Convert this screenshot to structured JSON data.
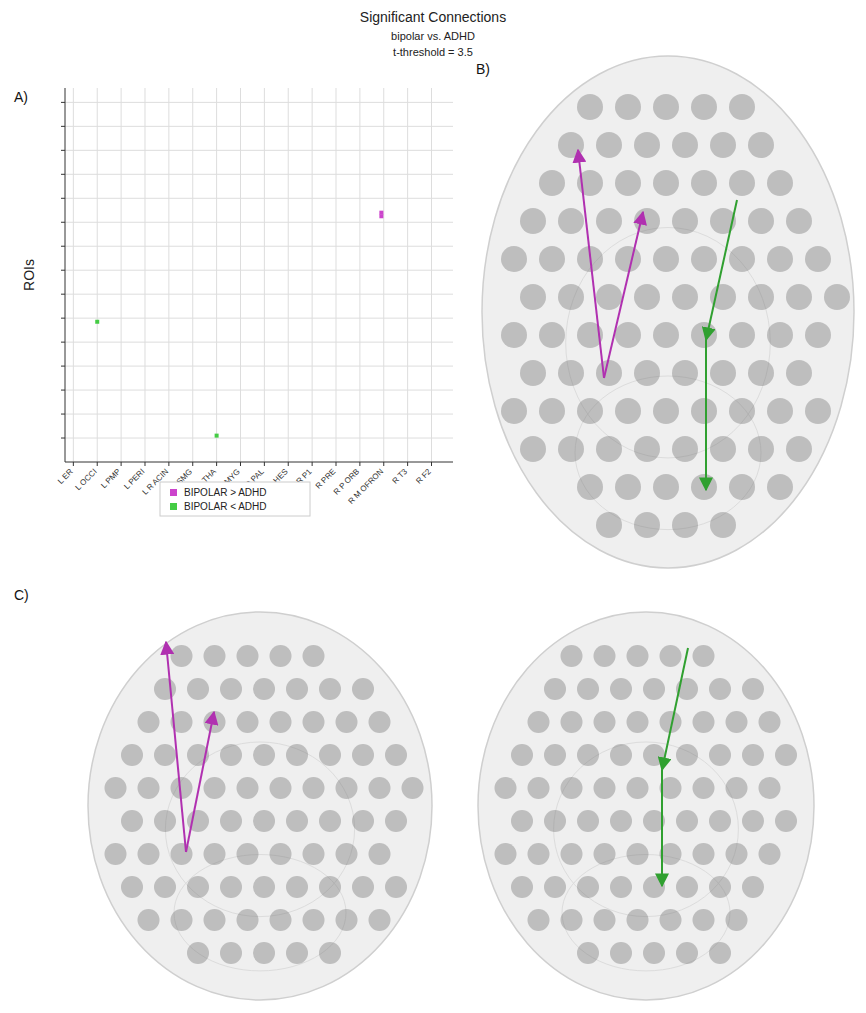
{
  "panel_labels": [
    "A)",
    "B)",
    "C)"
  ],
  "chart_data": {
    "type": "scatter",
    "title": "Significant Connections",
    "subtitle": "bipolar vs. ADHD",
    "annotations": [
      "t-threshold = 3.5"
    ],
    "ylabel": "ROIs",
    "xlim": [
      -0.35,
      15.9
    ],
    "xticks": [
      {
        "value": 0,
        "label": "L ER"
      },
      {
        "value": 1,
        "label": "L OCCI"
      },
      {
        "value": 2,
        "label": "L PMP"
      },
      {
        "value": 3,
        "label": "L PERI"
      },
      {
        "value": 4,
        "label": "L R ACIN"
      },
      {
        "value": 5,
        "label": "L SMG"
      },
      {
        "value": 6,
        "label": "L THA"
      },
      {
        "value": 7,
        "label": "L AMYG"
      },
      {
        "value": 8,
        "label": "R PAL"
      },
      {
        "value": 9,
        "label": "R HES"
      },
      {
        "value": 10,
        "label": "R P1"
      },
      {
        "value": 11,
        "label": "R PRE"
      },
      {
        "value": 12,
        "label": "R P ORB"
      },
      {
        "value": 13,
        "label": "R M OFRON"
      },
      {
        "value": 14,
        "label": "R T3"
      },
      {
        "value": 15,
        "label": "R F2"
      }
    ],
    "ylim": [
      0,
      15.6
    ],
    "yticks": [
      1,
      2,
      3,
      4,
      5,
      6,
      7,
      8,
      9,
      10,
      11,
      12,
      13,
      14,
      15
    ],
    "grid": true,
    "tick_labels": "x",
    "legend": "bottom",
    "series": [
      {
        "name": "BIPOLAR > ADHD",
        "color": "#cc44cc",
        "marker": "square",
        "x": [
          12.9,
          12.9
        ],
        "values": [
          10.4,
          10.25
        ]
      },
      {
        "name": "BIPOLAR < ADHD",
        "color": "#44cc44",
        "marker": "square",
        "x": [
          1,
          6
        ],
        "values": [
          5.85,
          1.1
        ]
      }
    ]
  }
}
